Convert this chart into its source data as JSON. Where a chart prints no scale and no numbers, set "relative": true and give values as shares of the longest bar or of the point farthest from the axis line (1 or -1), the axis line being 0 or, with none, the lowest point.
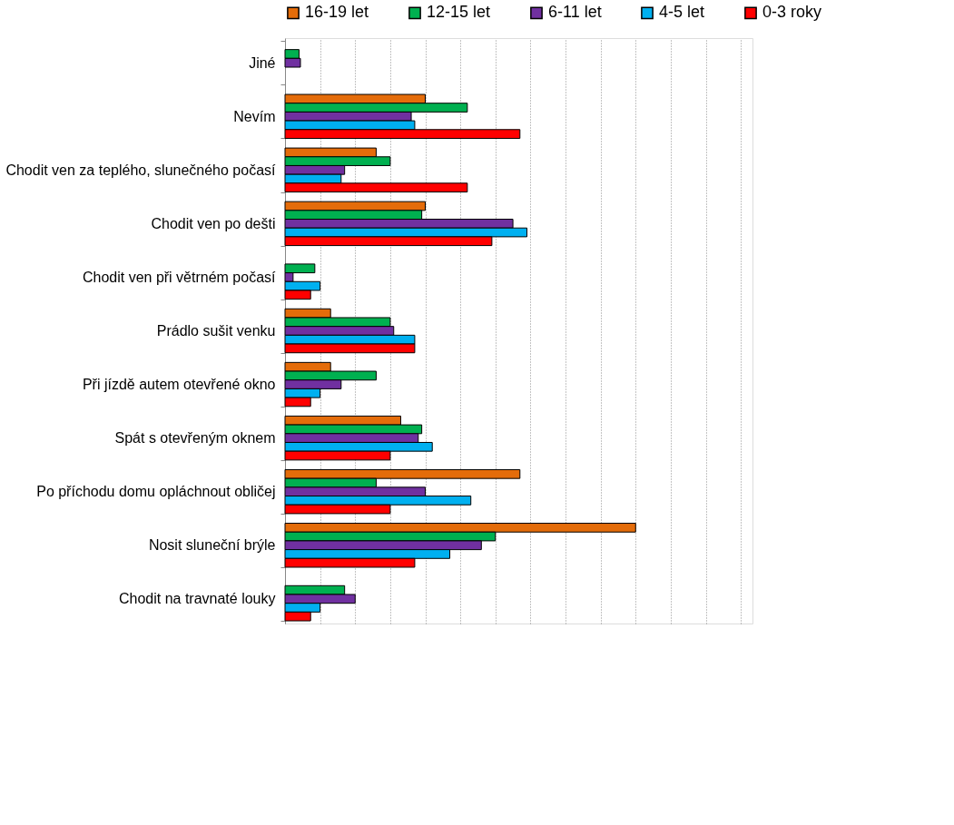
{
  "chart_data": {
    "type": "bar",
    "orientation": "horizontal",
    "relative": true,
    "grid": "x",
    "legend": "top",
    "categories": [
      "Jiné",
      "Nevím",
      "Chodit ven za teplého, slunečného počasí",
      "Chodit ven po dešti",
      "Chodit ven při větrném počasí",
      "Prádlo sušit venku",
      "Při jízdě autem otevřené okno",
      "Spát s otevřeným oknem",
      "Po příchodu domu opláchnout obličej",
      "Nosit sluneční brýle",
      "Chodit na travnaté louky"
    ],
    "series": [
      {
        "name": "16-19 let",
        "color": "#e46c0a",
        "values": [
          null,
          0.4,
          0.26,
          0.4,
          null,
          0.13,
          0.13,
          0.33,
          0.67,
          1,
          null
        ]
      },
      {
        "name": "12-15 let",
        "color": "#00b050",
        "values": [
          0.04,
          0.52,
          0.3,
          0.39,
          0.085,
          0.3,
          0.26,
          0.39,
          0.26,
          0.6,
          0.17
        ]
      },
      {
        "name": "6-11 let",
        "color": "#7030a0",
        "values": [
          0.044,
          0.36,
          0.17,
          0.65,
          0.023,
          0.31,
          0.16,
          0.38,
          0.4,
          0.56,
          0.2
        ]
      },
      {
        "name": "4-5 let",
        "color": "#00b0f0",
        "values": [
          null,
          0.37,
          0.16,
          0.69,
          0.1,
          0.37,
          0.1,
          0.42,
          0.53,
          0.47,
          0.1
        ]
      },
      {
        "name": "0-3 roky",
        "color": "#ff0000",
        "values": [
          null,
          0.67,
          0.52,
          0.59,
          0.073,
          0.37,
          0.073,
          0.3,
          0.3,
          0.37,
          0.073
        ]
      }
    ]
  }
}
